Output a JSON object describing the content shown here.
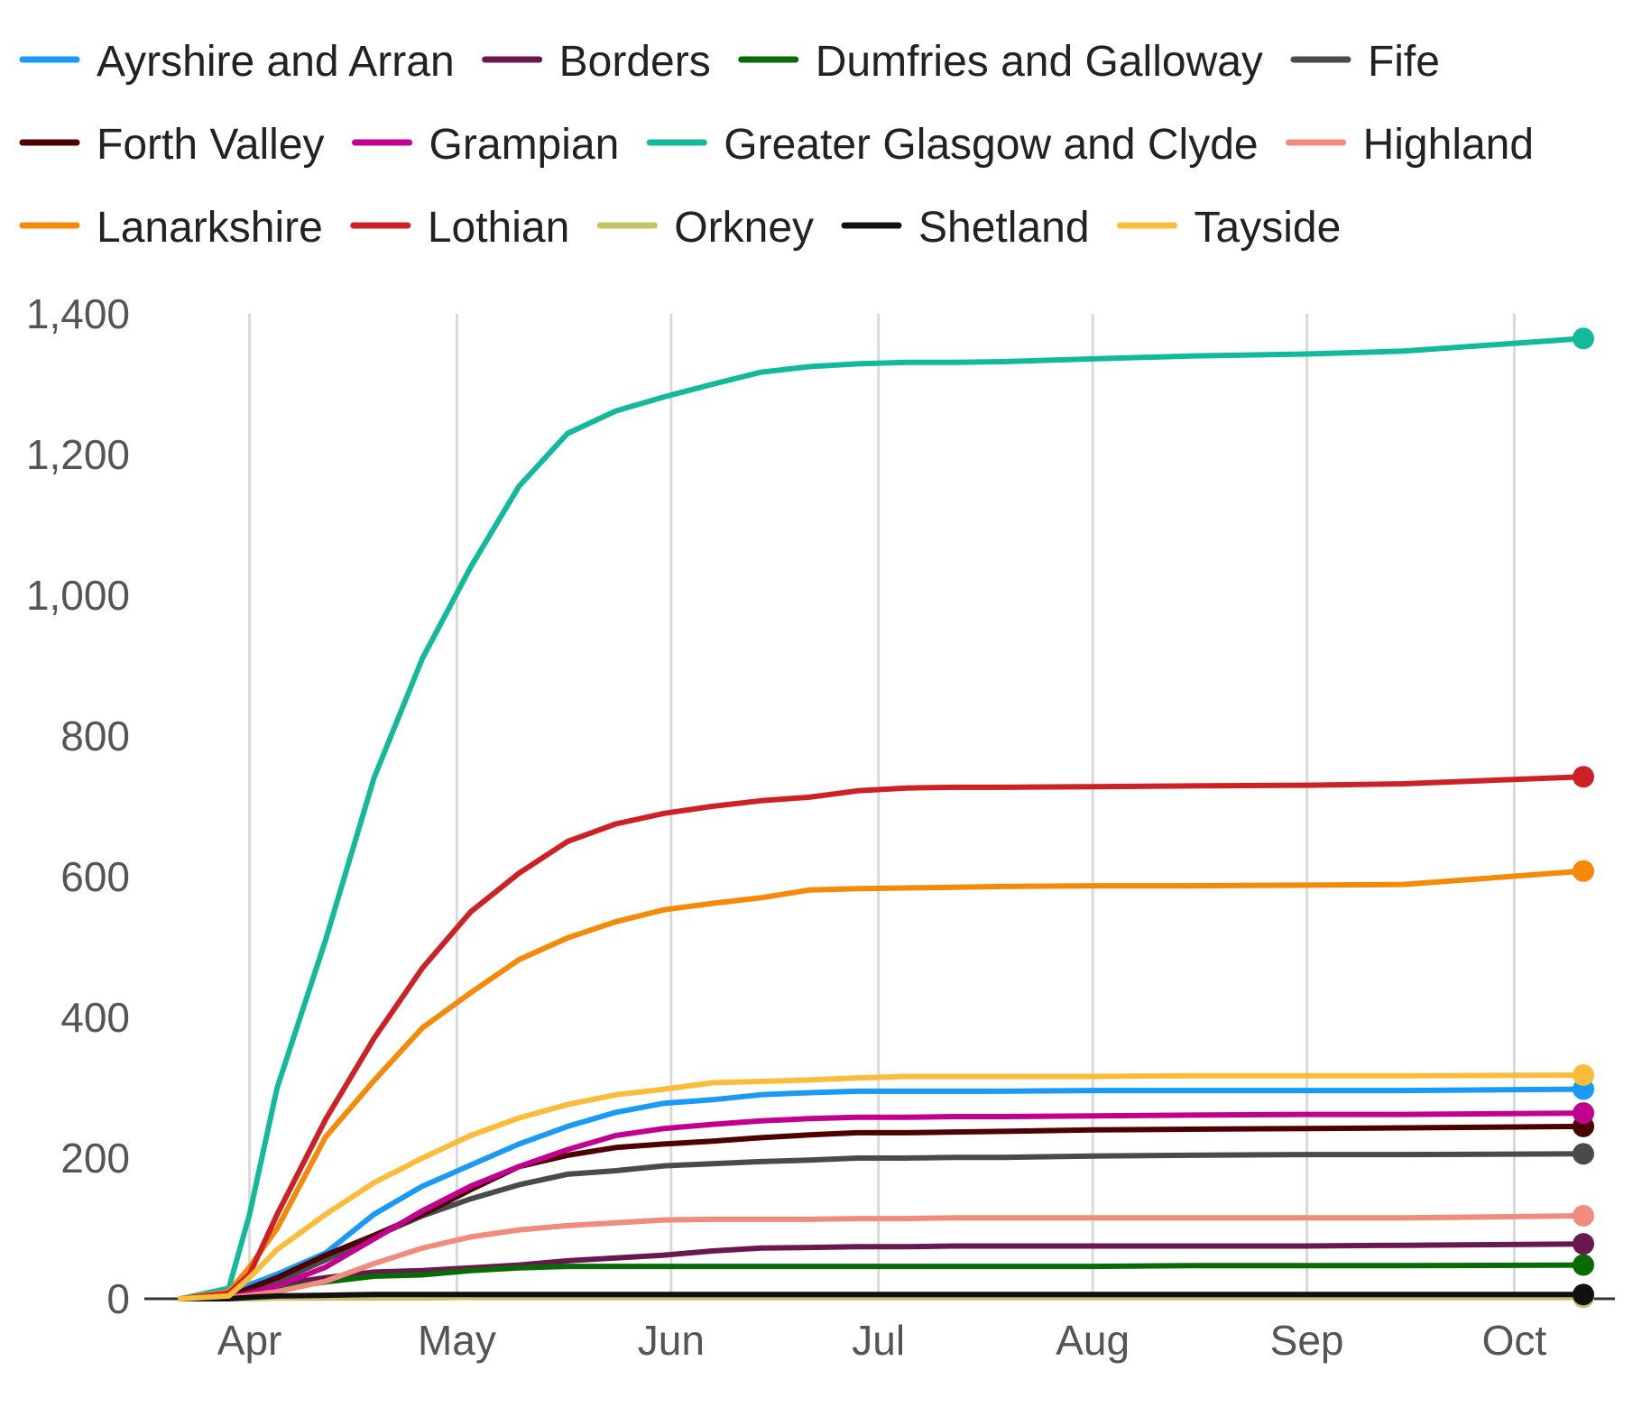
{
  "chart_data": {
    "type": "line",
    "title": "",
    "xlabel": "",
    "ylabel": "",
    "x_ticks": [
      "Apr",
      "May",
      "Jun",
      "Jul",
      "Aug",
      "Sep",
      "Oct"
    ],
    "x_tick_dates": [
      "2020-04-01",
      "2020-05-01",
      "2020-06-01",
      "2020-07-01",
      "2020-08-01",
      "2020-09-01",
      "2020-10-01"
    ],
    "x_range": [
      "2020-03-22",
      "2020-10-11"
    ],
    "y_ticks": [
      "0",
      "200",
      "400",
      "600",
      "800",
      "1,000",
      "1,200",
      "1,400"
    ],
    "ylim": [
      0,
      1400
    ],
    "grid": "vertical",
    "legend_position": "top",
    "end_markers": true,
    "x": [
      "2020-03-22",
      "2020-03-29",
      "2020-04-01",
      "2020-04-05",
      "2020-04-12",
      "2020-04-19",
      "2020-04-26",
      "2020-05-03",
      "2020-05-10",
      "2020-05-17",
      "2020-05-24",
      "2020-05-31",
      "2020-06-07",
      "2020-06-14",
      "2020-06-21",
      "2020-06-28",
      "2020-07-05",
      "2020-07-12",
      "2020-07-19",
      "2020-08-01",
      "2020-08-15",
      "2020-09-01",
      "2020-09-15",
      "2020-10-11"
    ],
    "series": [
      {
        "name": "Ayrshire and Arran",
        "color": "#1a9af5",
        "values": [
          0,
          5,
          20,
          35,
          65,
          120,
          160,
          190,
          220,
          245,
          265,
          278,
          283,
          290,
          293,
          295,
          295,
          295,
          295,
          296,
          296,
          296,
          296,
          298
        ]
      },
      {
        "name": "Borders",
        "color": "#6a1850",
        "values": [
          0,
          2,
          10,
          20,
          30,
          38,
          40,
          44,
          48,
          54,
          58,
          62,
          68,
          72,
          73,
          74,
          74,
          75,
          75,
          75,
          75,
          75,
          76,
          78
        ]
      },
      {
        "name": "Dumfries and Galloway",
        "color": "#096b06",
        "values": [
          0,
          2,
          8,
          14,
          24,
          32,
          34,
          40,
          44,
          46,
          46,
          46,
          46,
          46,
          46,
          46,
          46,
          46,
          46,
          46,
          47,
          47,
          47,
          48
        ]
      },
      {
        "name": "Fife",
        "color": "#4a4a4a",
        "values": [
          0,
          2,
          10,
          25,
          55,
          88,
          118,
          142,
          162,
          177,
          182,
          189,
          192,
          195,
          197,
          200,
          200,
          201,
          201,
          203,
          204,
          205,
          205,
          206
        ]
      },
      {
        "name": "Forth Valley",
        "color": "#4d0000",
        "values": [
          0,
          3,
          15,
          30,
          62,
          90,
          120,
          155,
          188,
          204,
          215,
          220,
          224,
          229,
          233,
          236,
          236,
          237,
          238,
          240,
          241,
          242,
          243,
          245
        ]
      },
      {
        "name": "Grampian",
        "color": "#c2008f",
        "values": [
          0,
          2,
          8,
          18,
          45,
          85,
          125,
          160,
          188,
          212,
          232,
          242,
          248,
          253,
          256,
          258,
          258,
          259,
          259,
          260,
          261,
          262,
          262,
          264
        ]
      },
      {
        "name": "Greater Glasgow and Clyde",
        "color": "#12b99a",
        "values": [
          0,
          15,
          120,
          300,
          510,
          740,
          910,
          1040,
          1155,
          1230,
          1262,
          1282,
          1300,
          1317,
          1325,
          1329,
          1331,
          1331,
          1332,
          1336,
          1340,
          1343,
          1347,
          1365
        ]
      },
      {
        "name": "Highland",
        "color": "#ef8c7d",
        "values": [
          0,
          1,
          5,
          10,
          25,
          50,
          72,
          88,
          98,
          104,
          108,
          112,
          113,
          113,
          113,
          114,
          114,
          115,
          115,
          115,
          115,
          115,
          115,
          118
        ]
      },
      {
        "name": "Lanarkshire",
        "color": "#f5890a",
        "values": [
          0,
          10,
          45,
          100,
          230,
          310,
          385,
          435,
          482,
          513,
          536,
          553,
          562,
          570,
          581,
          583,
          584,
          585,
          586,
          587,
          587,
          588,
          589,
          608
        ]
      },
      {
        "name": "Lothian",
        "color": "#cc2226",
        "values": [
          0,
          8,
          35,
          120,
          255,
          370,
          470,
          550,
          605,
          650,
          675,
          690,
          700,
          708,
          713,
          722,
          726,
          727,
          727,
          728,
          729,
          730,
          732,
          742
        ]
      },
      {
        "name": "Orkney",
        "color": "#c5c26a",
        "values": [
          0,
          0,
          0,
          1,
          1,
          1,
          1,
          2,
          2,
          2,
          2,
          2,
          2,
          2,
          2,
          2,
          2,
          2,
          2,
          2,
          2,
          2,
          2,
          2
        ]
      },
      {
        "name": "Shetland",
        "color": "#111111",
        "values": [
          0,
          0,
          2,
          4,
          5,
          6,
          6,
          6,
          6,
          6,
          6,
          6,
          6,
          6,
          6,
          6,
          6,
          6,
          6,
          6,
          6,
          6,
          6,
          6
        ]
      },
      {
        "name": "Tayside",
        "color": "#fbbc3c",
        "values": [
          0,
          4,
          30,
          70,
          120,
          165,
          200,
          232,
          257,
          276,
          290,
          298,
          307,
          309,
          311,
          314,
          316,
          316,
          316,
          316,
          317,
          317,
          317,
          318
        ]
      }
    ]
  }
}
